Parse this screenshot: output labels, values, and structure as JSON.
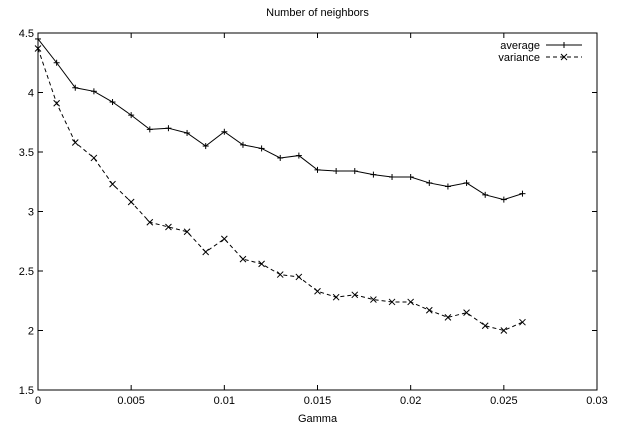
{
  "chart_data": {
    "type": "line",
    "title": "Number of neighbors",
    "xlabel": "Gamma",
    "ylabel": "",
    "xlim": [
      0,
      0.03
    ],
    "ylim": [
      1.5,
      4.5
    ],
    "xticks": [
      0,
      0.005,
      0.01,
      0.015,
      0.02,
      0.025,
      0.03
    ],
    "xtick_labels": [
      "0",
      "0.005",
      "0.01",
      "0.015",
      "0.02",
      "0.025",
      "0.03"
    ],
    "yticks": [
      1.5,
      2,
      2.5,
      3,
      3.5,
      4,
      4.5
    ],
    "ytick_labels": [
      "1.5",
      "2",
      "2.5",
      "3",
      "3.5",
      "4",
      "4.5"
    ],
    "grid": false,
    "legend_position": "top-right",
    "x": [
      0,
      0.001,
      0.002,
      0.003,
      0.004,
      0.005,
      0.006,
      0.007,
      0.008,
      0.009,
      0.01,
      0.011,
      0.012,
      0.013,
      0.014,
      0.015,
      0.016,
      0.017,
      0.018,
      0.019,
      0.02,
      0.021,
      0.022,
      0.023,
      0.024,
      0.025,
      0.026
    ],
    "series": [
      {
        "name": "average",
        "line_style": "solid",
        "marker": "plus",
        "values": [
          4.45,
          4.25,
          4.04,
          4.01,
          3.92,
          3.81,
          3.69,
          3.7,
          3.66,
          3.55,
          3.67,
          3.56,
          3.53,
          3.45,
          3.47,
          3.35,
          3.34,
          3.34,
          3.31,
          3.29,
          3.29,
          3.24,
          3.21,
          3.24,
          3.14,
          3.1,
          3.15
        ]
      },
      {
        "name": "variance",
        "line_style": "dashed",
        "marker": "cross",
        "values": [
          4.37,
          3.91,
          3.58,
          3.45,
          3.23,
          3.08,
          2.91,
          2.87,
          2.83,
          2.66,
          2.77,
          2.6,
          2.56,
          2.47,
          2.45,
          2.33,
          2.28,
          2.3,
          2.26,
          2.24,
          2.24,
          2.17,
          2.11,
          2.15,
          2.04,
          2.0,
          2.07
        ]
      }
    ]
  }
}
